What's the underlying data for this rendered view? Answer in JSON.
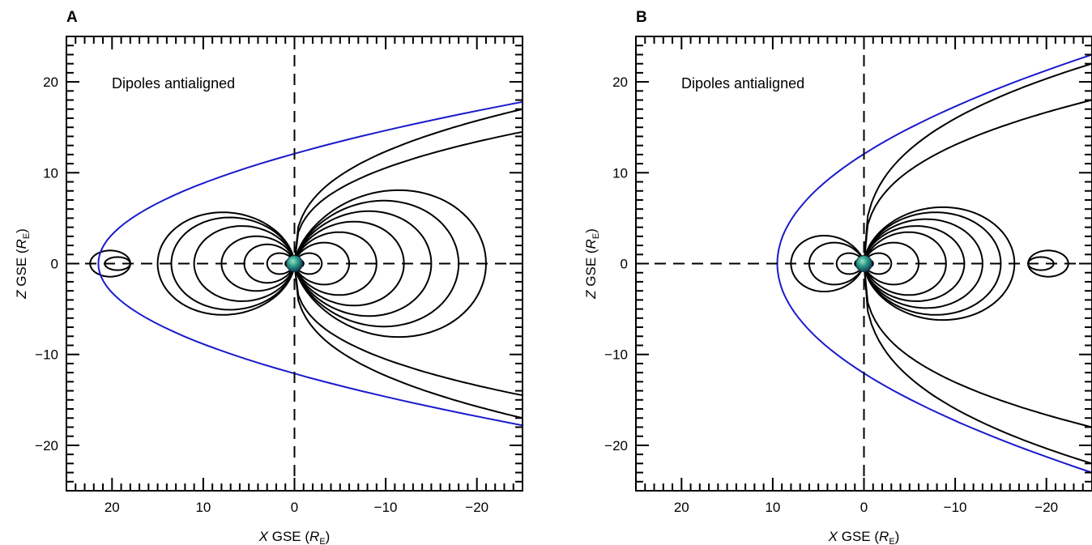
{
  "chart_data": [
    {
      "type": "line",
      "panel_label": "A",
      "annotation": "Dipoles antialigned",
      "xlabel": {
        "italic": "X",
        "text": " GSE (",
        "sym": "R",
        "sub": "E",
        "close": ")"
      },
      "ylabel": {
        "italic": "Z",
        "text": " GSE (",
        "sym": "R",
        "sub": "E",
        "close": ")"
      },
      "xlim": [
        25,
        -25
      ],
      "ylim": [
        -25,
        25
      ],
      "x_ticks": [
        20,
        10,
        0,
        -10,
        -20
      ],
      "x_tick_labels": [
        "20",
        "10",
        "0",
        "−10",
        "−20"
      ],
      "y_ticks": [
        20,
        10,
        0,
        -10,
        -20
      ],
      "y_tick_labels": [
        "20",
        "10",
        "0",
        "−10",
        "−20"
      ],
      "reference_lines": {
        "x": 0,
        "z": 0,
        "style": "dashed"
      },
      "magnetopause": {
        "color": "#1a1acc",
        "subsolar_x": 21.5,
        "flank_z_at_x_minus25": 17.8
      },
      "earth": {
        "x": 0,
        "z": 0
      },
      "neutral_point": {
        "x": 18,
        "z": 0
      },
      "field_lines": {
        "planet_loops_sunward_x": [
          1,
          3,
          5.5
        ],
        "planet_loops_tailward_x": [
          -1,
          -3,
          -6,
          -9,
          -12,
          -15,
          -18,
          -21
        ],
        "enclosing_loops_sunward_x": [
          8,
          11,
          13.5,
          15
        ],
        "open_tail_z": [
          14.5,
          17
        ]
      }
    },
    {
      "type": "line",
      "panel_label": "B",
      "annotation": "Dipoles antialigned",
      "xlabel": {
        "italic": "X",
        "text": " GSE (",
        "sym": "R",
        "sub": "E",
        "close": ")"
      },
      "ylabel": {
        "italic": "Z",
        "text": " GSE (",
        "sym": "R",
        "sub": "E",
        "close": ")"
      },
      "xlim": [
        25,
        -25
      ],
      "ylim": [
        -25,
        25
      ],
      "x_ticks": [
        20,
        10,
        0,
        -10,
        -20
      ],
      "x_tick_labels": [
        "20",
        "10",
        "0",
        "−10",
        "−20"
      ],
      "y_ticks": [
        20,
        10,
        0,
        -10,
        -20
      ],
      "y_tick_labels": [
        "20",
        "10",
        "0",
        "−10",
        "−20"
      ],
      "reference_lines": {
        "x": 0,
        "z": 0,
        "style": "dashed"
      },
      "magnetopause": {
        "color": "#1a1acc",
        "subsolar_x": 9.5,
        "flank_z_at_x_minus25": 23
      },
      "earth": {
        "x": 0,
        "z": 0
      },
      "neutral_point": {
        "x": -18,
        "z": 0
      },
      "field_lines": {
        "planet_loops_tailward_x": [
          -1,
          -3,
          -6,
          -9
        ],
        "planet_loops_sunward_x": [
          1,
          3,
          6,
          8
        ],
        "enclosing_loops_tailward_x": [
          -11,
          -13,
          -15,
          -16.5
        ],
        "open_tail_z": [
          18,
          22
        ]
      }
    }
  ]
}
